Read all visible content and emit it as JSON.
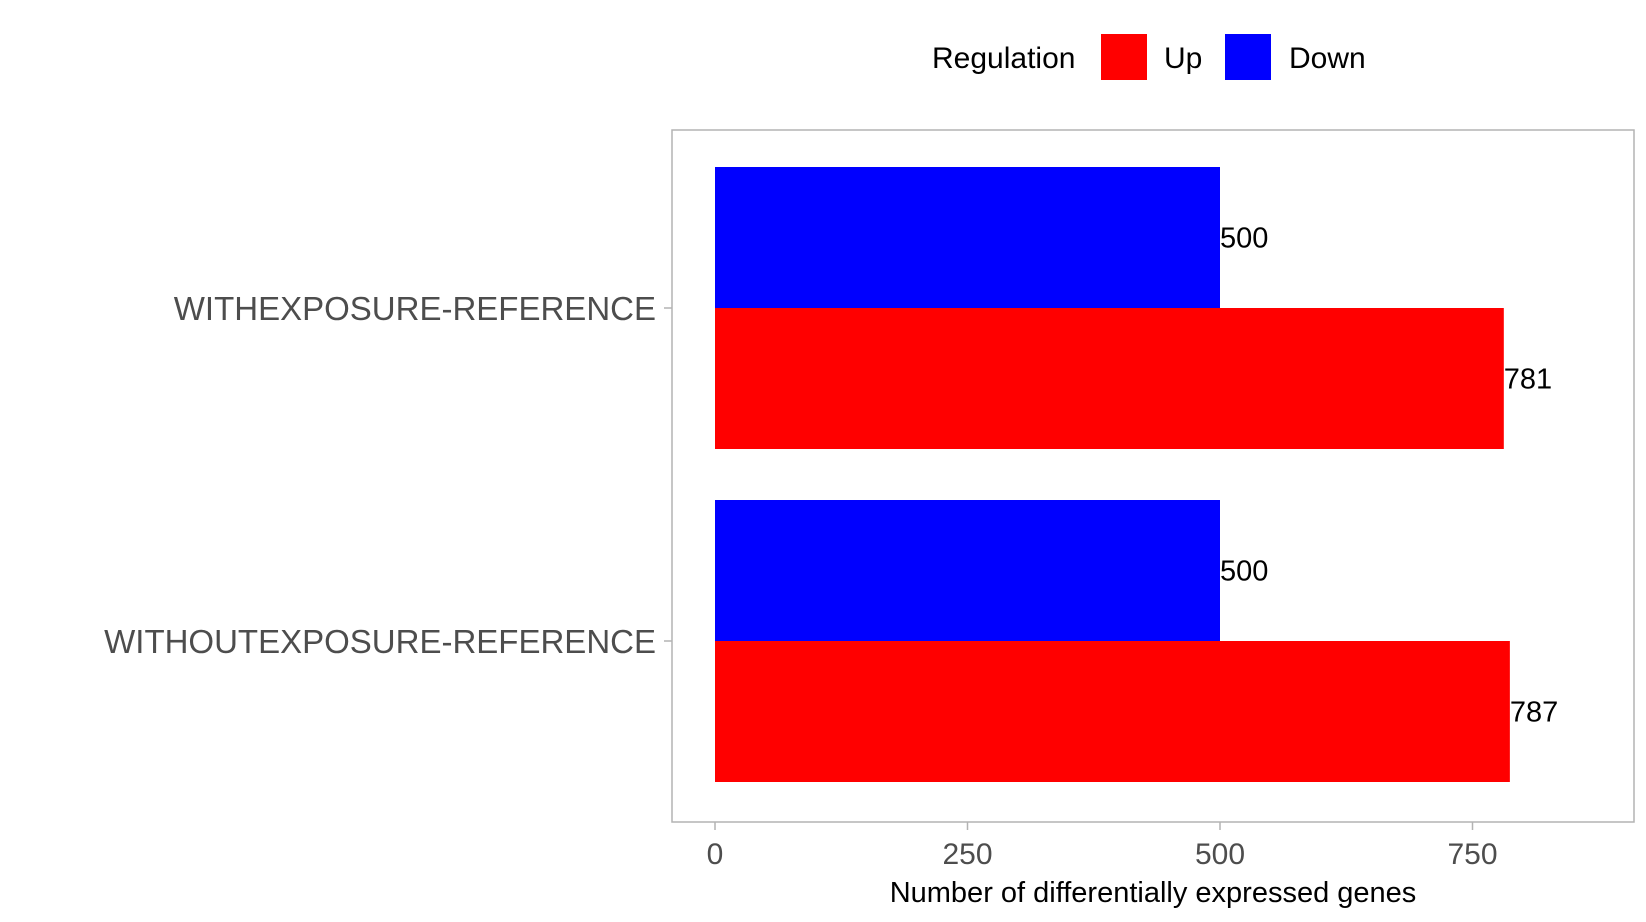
{
  "chart_data": {
    "type": "bar",
    "orientation": "horizontal",
    "categories": [
      "WITHEXPOSURE-REFERENCE",
      "WITHOUTEXPOSURE-REFERENCE"
    ],
    "series": [
      {
        "name": "Down",
        "color": "#0000ff",
        "values": [
          500,
          500
        ]
      },
      {
        "name": "Up",
        "color": "#ff0000",
        "values": [
          781,
          787
        ]
      }
    ],
    "xlabel": "Number of differentially expressed genes",
    "ylabel": "",
    "xlim": [
      -40,
      910
    ],
    "xticks": [
      0,
      250,
      500,
      750
    ],
    "grid": false,
    "legend": {
      "title": "Regulation",
      "position": "top",
      "entries": [
        "Up",
        "Down"
      ]
    },
    "data_labels": true
  }
}
